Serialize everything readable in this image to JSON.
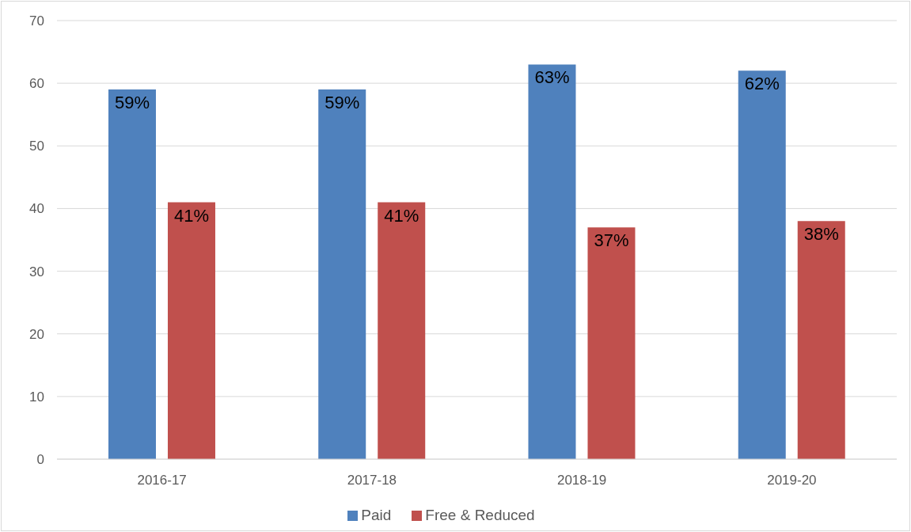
{
  "chart_data": {
    "type": "bar",
    "categories": [
      "2016-17",
      "2017-18",
      "2018-19",
      "2019-20"
    ],
    "series": [
      {
        "name": "Paid",
        "color": "#4f81bd",
        "values": [
          59,
          59,
          63,
          62
        ],
        "value_labels": [
          "59%",
          "59%",
          "63%",
          "62%"
        ]
      },
      {
        "name": "Free & Reduced",
        "color": "#c0504d",
        "values": [
          41,
          41,
          37,
          38
        ],
        "value_labels": [
          "41%",
          "41%",
          "37%",
          "38%"
        ]
      }
    ],
    "ylim": [
      0,
      70
    ],
    "yticks": [
      0,
      10,
      20,
      30,
      40,
      50,
      60,
      70
    ],
    "grid": "y",
    "legend": "bottom"
  }
}
